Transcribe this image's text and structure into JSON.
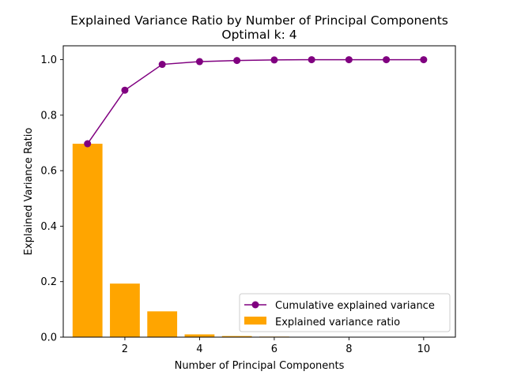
{
  "chart_data": {
    "type": "bar+line",
    "title": "Explained Variance Ratio by Number of Principal Components",
    "subtitle": "Optimal k: 4",
    "xlabel": "Number of Principal Components",
    "ylabel": "Explained Variance Ratio",
    "xlim": [
      0.35,
      10.85
    ],
    "ylim": [
      0.0,
      1.05
    ],
    "x_ticks": [
      2,
      4,
      6,
      8,
      10
    ],
    "y_ticks": [
      0.0,
      0.2,
      0.4,
      0.6,
      0.8,
      1.0
    ],
    "x_tick_labels": [
      "2",
      "4",
      "6",
      "8",
      "10"
    ],
    "y_tick_labels": [
      "0.0",
      "0.2",
      "0.4",
      "0.6",
      "0.8",
      "1.0"
    ],
    "grid": false,
    "legend_position": "lower-right",
    "x": [
      1,
      2,
      3,
      4,
      5,
      6,
      7,
      8,
      9,
      10
    ],
    "series": [
      {
        "name": "Cumulative explained variance",
        "kind": "line",
        "marker": "circle",
        "color": "#800080",
        "values": [
          0.697,
          0.89,
          0.983,
          0.993,
          0.997,
          0.999,
          1.0,
          1.0,
          1.0,
          1.0
        ]
      },
      {
        "name": "Explained variance ratio",
        "kind": "bar",
        "color": "#FFA500",
        "values": [
          0.697,
          0.193,
          0.093,
          0.01,
          0.004,
          0.002,
          0.001,
          0.0005,
          0.0003,
          0.0002
        ]
      }
    ]
  }
}
